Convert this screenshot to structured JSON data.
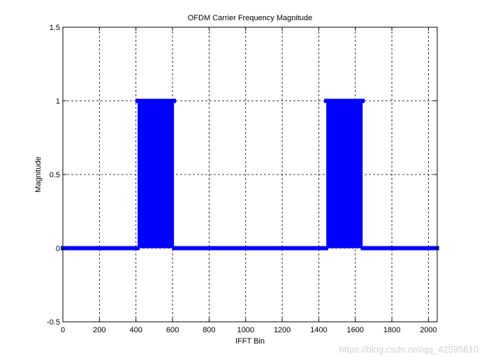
{
  "watermark": "https://blog.csdn.net/qq_42595610",
  "colors": {
    "background": "#ffffff",
    "axes": "#000000",
    "grid": "#000000",
    "series": "#0000ff"
  },
  "chart_data": {
    "type": "bar",
    "title": "OFDM Carrier Frequency Magnitude",
    "xlabel": "IFFT Bin",
    "ylabel": "Magnitude",
    "xlim": [
      0,
      2048
    ],
    "ylim": [
      -0.5,
      1.5
    ],
    "xticks": [
      0,
      200,
      400,
      600,
      800,
      1000,
      1200,
      1400,
      1600,
      1800,
      2000
    ],
    "xtick_labels": [
      "0",
      "200",
      "400",
      "600",
      "800",
      "1000",
      "1200",
      "1400",
      "1600",
      "1800",
      "2000"
    ],
    "yticks": [
      -0.5,
      0,
      0.5,
      1,
      1.5
    ],
    "ytick_labels": [
      "-0.5",
      "0",
      "0.5",
      "1",
      "1.5"
    ],
    "grid": true,
    "grid_style": "dashed",
    "marker": "x",
    "series": [
      {
        "segments": [
          {
            "x_start": 0,
            "x_end": 408,
            "value": 0
          },
          {
            "x_start": 409,
            "x_end": 608,
            "value": 1
          },
          {
            "x_start": 609,
            "x_end": 1440,
            "value": 0
          },
          {
            "x_start": 1441,
            "x_end": 1640,
            "value": 1
          },
          {
            "x_start": 1641,
            "x_end": 2047,
            "value": 0
          }
        ]
      }
    ]
  }
}
